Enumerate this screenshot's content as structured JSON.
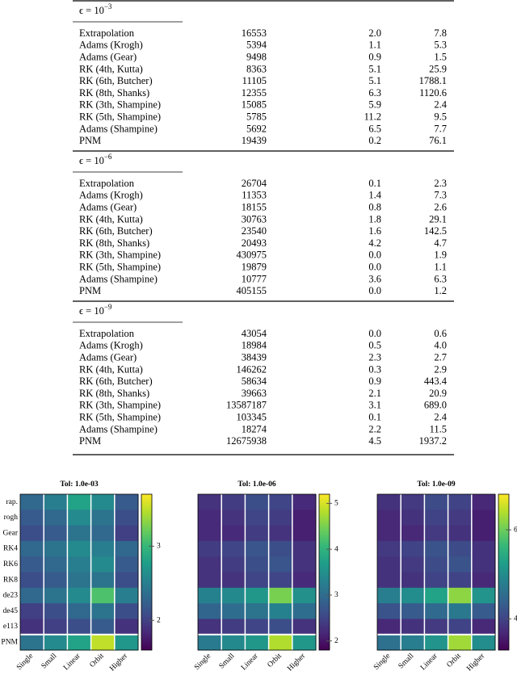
{
  "table": {
    "sections": [
      {
        "epsilon": {
          "base": "ϵ = 10",
          "exponent": "−3"
        },
        "rows": [
          [
            "Extrapolation",
            "16553",
            "2.0",
            "7.8"
          ],
          [
            "Adams (Krogh)",
            "5394",
            "1.1",
            "5.3"
          ],
          [
            "Adams (Gear)",
            "9498",
            "0.9",
            "1.5"
          ],
          [
            "RK (4th, Kutta)",
            "8363",
            "5.1",
            "25.9"
          ],
          [
            "RK (6th, Butcher)",
            "11105",
            "5.1",
            "1788.1"
          ],
          [
            "RK (8th, Shanks)",
            "12355",
            "6.3",
            "1120.6"
          ],
          [
            "RK (3th, Shampine)",
            "15085",
            "5.9",
            "2.4"
          ],
          [
            "RK (5th, Shampine)",
            "5785",
            "11.2",
            "9.5"
          ],
          [
            "Adams (Shampine)",
            "5692",
            "6.5",
            "7.7"
          ],
          [
            "PNM",
            "19439",
            "0.2",
            "76.1"
          ]
        ]
      },
      {
        "epsilon": {
          "base": "ϵ = 10",
          "exponent": "−6"
        },
        "rows": [
          [
            "Extrapolation",
            "26704",
            "0.1",
            "2.3"
          ],
          [
            "Adams (Krogh)",
            "11353",
            "1.4",
            "7.3"
          ],
          [
            "Adams (Gear)",
            "18155",
            "0.8",
            "2.6"
          ],
          [
            "RK (4th, Kutta)",
            "30763",
            "1.8",
            "29.1"
          ],
          [
            "RK (6th, Butcher)",
            "23540",
            "1.6",
            "142.5"
          ],
          [
            "RK (8th, Shanks)",
            "20493",
            "4.2",
            "4.7"
          ],
          [
            "RK (3th, Shampine)",
            "430975",
            "0.0",
            "1.9"
          ],
          [
            "RK (5th, Shampine)",
            "19879",
            "0.0",
            "1.1"
          ],
          [
            "Adams (Shampine)",
            "10777",
            "3.6",
            "6.3"
          ],
          [
            "PNM",
            "405155",
            "0.0",
            "1.2"
          ]
        ]
      },
      {
        "epsilon": {
          "base": "ϵ = 10",
          "exponent": "−9"
        },
        "rows": [
          [
            "Extrapolation",
            "43054",
            "0.0",
            "0.6"
          ],
          [
            "Adams (Krogh)",
            "18984",
            "0.5",
            "4.0"
          ],
          [
            "Adams (Gear)",
            "38439",
            "2.3",
            "2.7"
          ],
          [
            "RK (4th, Kutta)",
            "146262",
            "0.3",
            "2.9"
          ],
          [
            "RK (6th, Butcher)",
            "58634",
            "0.9",
            "443.4"
          ],
          [
            "RK (8th, Shanks)",
            "39663",
            "2.1",
            "20.9"
          ],
          [
            "RK (3th, Shampine)",
            "13587187",
            "3.1",
            "689.0"
          ],
          [
            "RK (5th, Shampine)",
            "103345",
            "0.1",
            "2.4"
          ],
          [
            "Adams (Shampine)",
            "18274",
            "2.2",
            "11.5"
          ],
          [
            "PNM",
            "12675938",
            "4.5",
            "1937.2"
          ]
        ]
      }
    ]
  },
  "figure": {
    "row_labels": [
      "rap.",
      "rogh",
      "Gear",
      "RK4",
      "RK6",
      "RK8",
      "de23",
      "de45",
      "e113",
      "PNM"
    ],
    "column_labels": [
      "Single",
      "Small",
      "Linear",
      "Orbit",
      "Higher"
    ],
    "heatmaps": [
      {
        "title": "Tol: 1.0e-03",
        "clim": [
          1.6,
          3.7
        ],
        "cticks": [
          2,
          3
        ],
        "values": [
          [
            2.3,
            2.5,
            2.8,
            2.6,
            2.2
          ],
          [
            2.2,
            2.3,
            2.6,
            2.4,
            2.1
          ],
          [
            2.1,
            2.2,
            2.4,
            2.3,
            2.0
          ],
          [
            2.3,
            2.4,
            2.6,
            2.5,
            2.3
          ],
          [
            2.2,
            2.3,
            2.5,
            2.6,
            2.2
          ],
          [
            2.1,
            2.2,
            2.4,
            2.4,
            2.1
          ],
          [
            2.3,
            2.4,
            2.6,
            3.1,
            2.5
          ],
          [
            2.0,
            2.1,
            2.3,
            2.4,
            2.1
          ],
          [
            1.9,
            2.0,
            2.1,
            2.2,
            1.9
          ],
          [
            2.4,
            2.6,
            2.8,
            3.5,
            2.7
          ]
        ]
      },
      {
        "title": "Tol: 1.0e-06",
        "clim": [
          1.8,
          5.2
        ],
        "cticks": [
          2,
          3,
          4,
          5
        ],
        "values": [
          [
            2.3,
            2.4,
            2.6,
            2.5,
            2.2
          ],
          [
            2.2,
            2.3,
            2.5,
            2.4,
            2.1
          ],
          [
            2.2,
            2.2,
            2.4,
            2.3,
            2.1
          ],
          [
            2.4,
            2.5,
            2.7,
            2.6,
            2.3
          ],
          [
            2.3,
            2.4,
            2.6,
            2.7,
            2.3
          ],
          [
            2.3,
            2.3,
            2.5,
            2.5,
            2.2
          ],
          [
            3.3,
            3.4,
            3.6,
            4.5,
            3.5
          ],
          [
            2.9,
            3.0,
            3.1,
            3.3,
            3.0
          ],
          [
            2.3,
            2.4,
            2.5,
            2.6,
            2.3
          ],
          [
            3.2,
            3.4,
            3.6,
            4.8,
            3.6
          ]
        ]
      },
      {
        "title": "Tol: 1.0e-09",
        "clim": [
          3.3,
          6.8
        ],
        "cticks": [
          4,
          6
        ],
        "values": [
          [
            3.8,
            3.9,
            4.1,
            4.0,
            3.7
          ],
          [
            3.7,
            3.8,
            4.0,
            3.9,
            3.6
          ],
          [
            3.7,
            3.7,
            3.9,
            3.8,
            3.6
          ],
          [
            3.9,
            4.0,
            4.2,
            4.1,
            3.8
          ],
          [
            3.8,
            3.9,
            4.1,
            4.2,
            3.8
          ],
          [
            3.8,
            3.8,
            4.0,
            4.0,
            3.7
          ],
          [
            4.8,
            5.0,
            5.3,
            6.2,
            5.1
          ],
          [
            4.2,
            4.3,
            4.5,
            4.7,
            4.3
          ],
          [
            3.7,
            3.8,
            3.9,
            4.0,
            3.7
          ],
          [
            4.6,
            4.8,
            5.1,
            6.3,
            5.0
          ]
        ]
      }
    ]
  }
}
